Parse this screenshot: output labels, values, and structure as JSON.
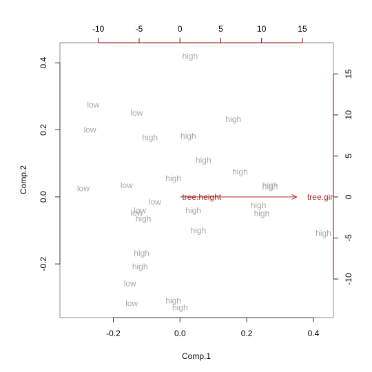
{
  "chart_data": {
    "type": "scatter",
    "title": "",
    "xlabel": "Comp.1",
    "ylabel": "Comp.2",
    "xlim": [
      -0.36,
      0.46
    ],
    "ylim": [
      -0.36,
      0.46
    ],
    "xticks": [
      -0.2,
      0.0,
      0.2,
      0.4
    ],
    "yticks": [
      -0.2,
      0.0,
      0.2,
      0.4
    ],
    "xtick_labels": [
      "-0.2",
      "0.0",
      "0.2",
      "0.4"
    ],
    "ytick_labels": [
      "-0.2",
      "0.0",
      "0.2",
      "0.4"
    ],
    "secondary_x": {
      "lim": [
        -14.7,
        18.8
      ],
      "ticks": [
        -10,
        -5,
        0,
        5,
        10,
        15
      ],
      "tick_labels": [
        "-10",
        "-5",
        "0",
        "5",
        "10",
        "15"
      ],
      "color": "#8b0000"
    },
    "secondary_y": {
      "lim": [
        -14.7,
        18.8
      ],
      "ticks": [
        -10,
        -5,
        0,
        5,
        10,
        15
      ],
      "tick_labels": [
        "-10",
        "-5",
        "0",
        "5",
        "10",
        "15"
      ],
      "color": "#8b0000"
    },
    "grid": false,
    "point_color": "#a8a8a8",
    "arrow_color": "#a52a2a",
    "points": [
      {
        "x": 0.03,
        "y": 0.42,
        "label": "high"
      },
      {
        "x": -0.26,
        "y": 0.275,
        "label": "low"
      },
      {
        "x": -0.13,
        "y": 0.25,
        "label": "low"
      },
      {
        "x": -0.27,
        "y": 0.2,
        "label": "low"
      },
      {
        "x": -0.09,
        "y": 0.177,
        "label": "high"
      },
      {
        "x": 0.025,
        "y": 0.182,
        "label": "high"
      },
      {
        "x": 0.16,
        "y": 0.232,
        "label": "high"
      },
      {
        "x": 0.07,
        "y": 0.11,
        "label": "high"
      },
      {
        "x": 0.18,
        "y": 0.075,
        "label": "high"
      },
      {
        "x": -0.02,
        "y": 0.055,
        "label": "high"
      },
      {
        "x": -0.29,
        "y": 0.025,
        "label": "low"
      },
      {
        "x": -0.16,
        "y": 0.035,
        "label": "low"
      },
      {
        "x": 0.27,
        "y": 0.035,
        "label": "high"
      },
      {
        "x": 0.27,
        "y": 0.03,
        "label": "high"
      },
      {
        "x": -0.075,
        "y": -0.015,
        "label": "low"
      },
      {
        "x": 0.235,
        "y": -0.025,
        "label": "high"
      },
      {
        "x": 0.04,
        "y": -0.04,
        "label": "high"
      },
      {
        "x": -0.12,
        "y": -0.04,
        "label": "low"
      },
      {
        "x": -0.13,
        "y": -0.048,
        "label": "low"
      },
      {
        "x": -0.11,
        "y": -0.065,
        "label": "high"
      },
      {
        "x": 0.245,
        "y": -0.05,
        "label": "high"
      },
      {
        "x": 0.055,
        "y": -0.1,
        "label": "high"
      },
      {
        "x": 0.43,
        "y": -0.108,
        "label": "high"
      },
      {
        "x": -0.115,
        "y": -0.168,
        "label": "high"
      },
      {
        "x": -0.12,
        "y": -0.208,
        "label": "high"
      },
      {
        "x": -0.15,
        "y": -0.258,
        "label": "low"
      },
      {
        "x": -0.145,
        "y": -0.318,
        "label": "low"
      },
      {
        "x": -0.02,
        "y": -0.31,
        "label": "high"
      },
      {
        "x": 0.0,
        "y": -0.33,
        "label": "high"
      }
    ],
    "loadings": [
      {
        "name": "tree.height",
        "x": 0.0,
        "y": 0.0,
        "label_x": 0.065,
        "label_y": 0.0
      },
      {
        "name": "tree.girth",
        "x": 0.35,
        "y": 0.0,
        "label_x": 0.42,
        "label_y": 0.0
      }
    ],
    "loading_labels_visible": [
      "tree.height",
      "tree.gir"
    ]
  }
}
